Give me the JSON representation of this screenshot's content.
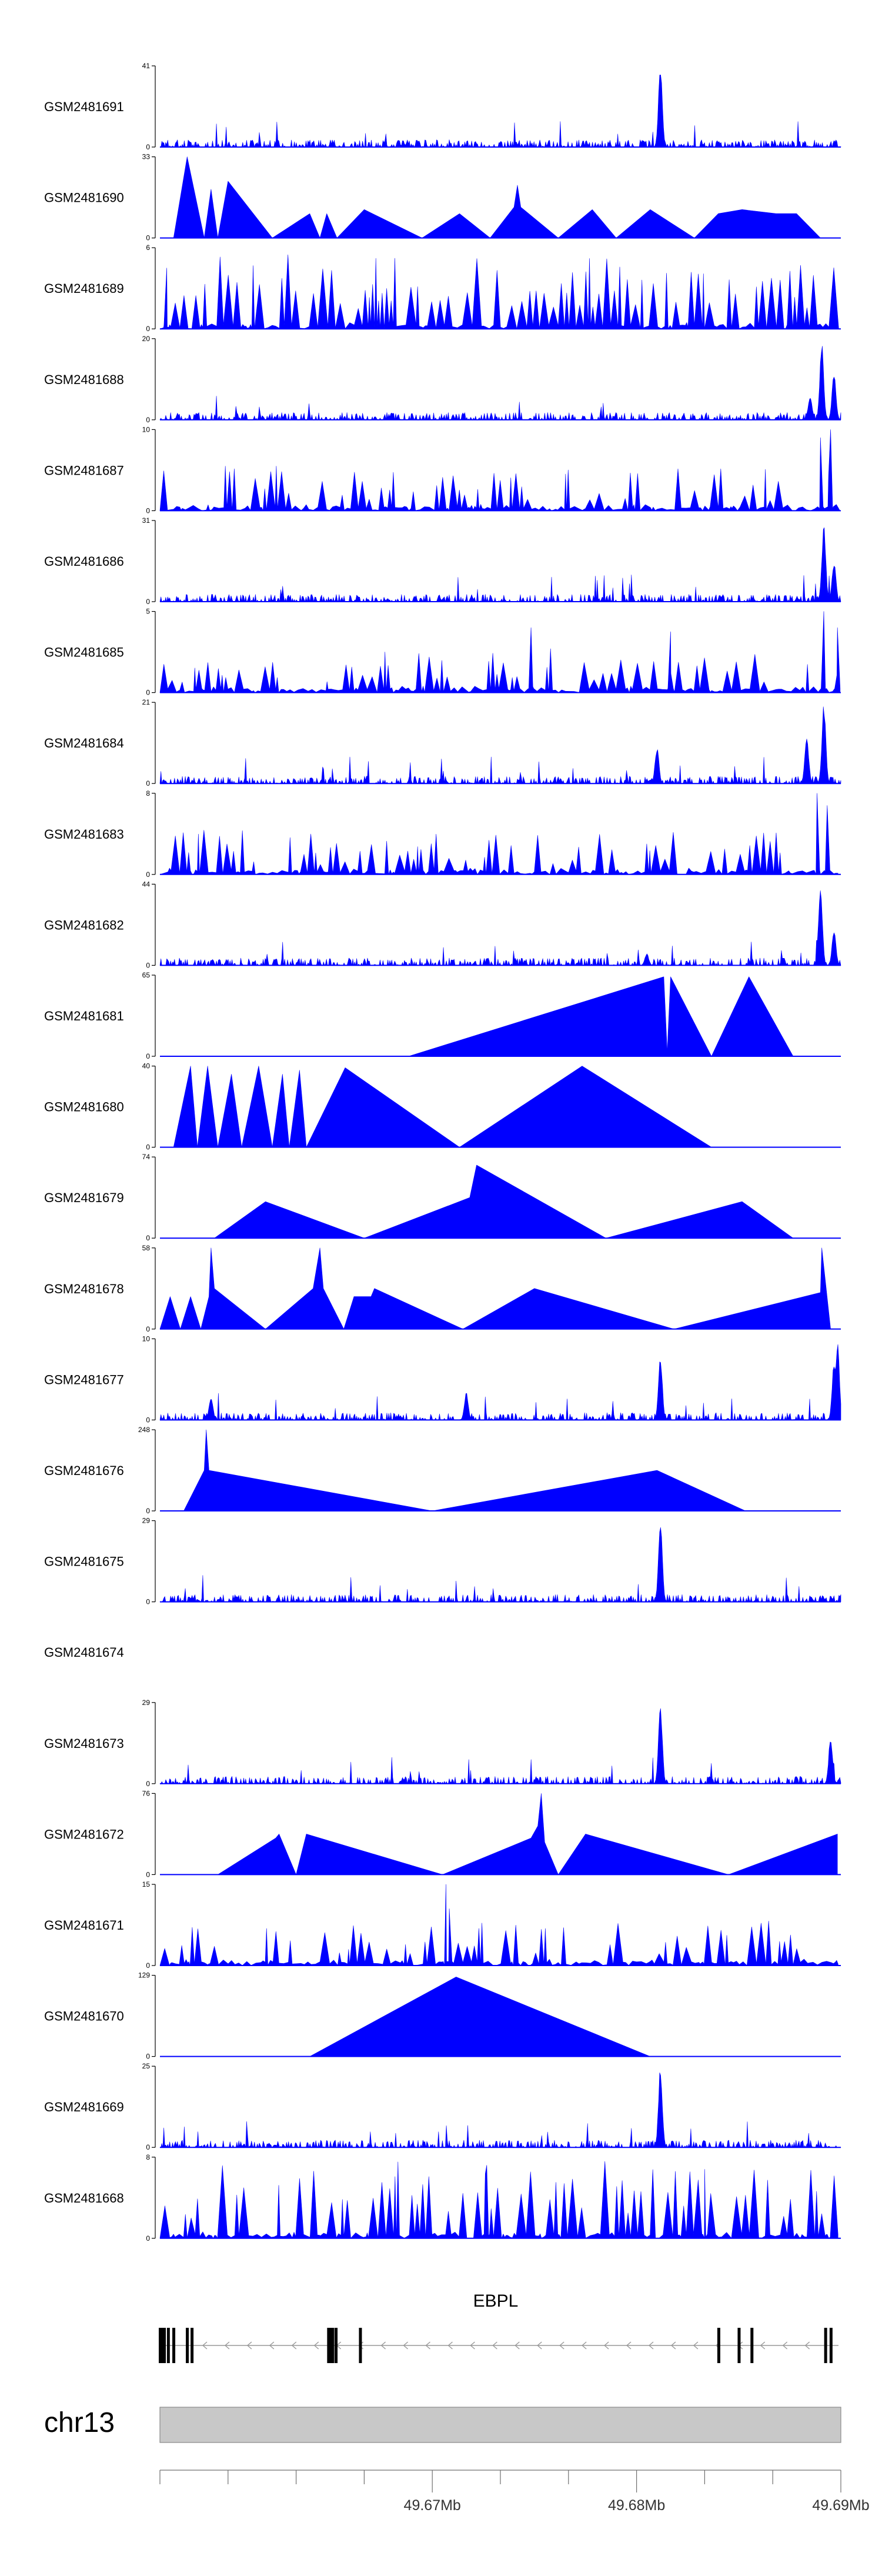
{
  "chart_data": {
    "type": "area",
    "colors": {
      "signal": "#0000ff",
      "axis": "#000000",
      "gene": "#000000",
      "ideogram": "#c8c8c8",
      "strand": "#999999"
    },
    "tracks": [
      {
        "sample": "GSM2481691",
        "ymax": 41,
        "pattern": "sparse",
        "peaks": [
          [
            0.735,
            1.0
          ]
        ]
      },
      {
        "sample": "GSM2481690",
        "ymax": 33,
        "pattern": "tri",
        "anchors": [
          [
            0.02,
            0
          ],
          [
            0.04,
            1.0
          ],
          [
            0.065,
            0
          ],
          [
            0.075,
            0.6
          ],
          [
            0.085,
            0
          ],
          [
            0.1,
            0.7
          ],
          [
            0.165,
            0
          ],
          [
            0.22,
            0.3
          ],
          [
            0.235,
            0
          ],
          [
            0.245,
            0.3
          ],
          [
            0.26,
            0
          ],
          [
            0.3,
            0.35
          ],
          [
            0.385,
            0
          ],
          [
            0.44,
            0.3
          ],
          [
            0.485,
            0
          ],
          [
            0.52,
            0.38
          ],
          [
            0.525,
            0.65
          ],
          [
            0.53,
            0.38
          ],
          [
            0.585,
            0
          ],
          [
            0.635,
            0.35
          ],
          [
            0.67,
            0
          ],
          [
            0.72,
            0.35
          ],
          [
            0.785,
            0
          ],
          [
            0.82,
            0.3
          ],
          [
            0.855,
            0.35
          ],
          [
            0.905,
            0.3
          ],
          [
            0.935,
            0.3
          ],
          [
            0.97,
            0
          ]
        ]
      },
      {
        "sample": "GSM2481689",
        "ymax": 6,
        "pattern": "dense",
        "peaks": [
          [
            0.01,
            0.75
          ]
        ]
      },
      {
        "sample": "GSM2481688",
        "ymax": 20,
        "pattern": "sparse",
        "peaks": [
          [
            0.972,
            0.95
          ],
          [
            0.99,
            0.6
          ],
          [
            0.955,
            0.3
          ]
        ]
      },
      {
        "sample": "GSM2481687",
        "ymax": 10,
        "pattern": "dense2",
        "peaks": [
          [
            0.985,
            1.0
          ],
          [
            0.97,
            0.9
          ]
        ]
      },
      {
        "sample": "GSM2481686",
        "ymax": 31,
        "pattern": "sparse",
        "peaks": [
          [
            0.975,
            0.95
          ],
          [
            0.99,
            0.5
          ]
        ]
      },
      {
        "sample": "GSM2481685",
        "ymax": 5,
        "pattern": "dense2",
        "peaks": [
          [
            0.975,
            1.0
          ],
          [
            0.545,
            0.8
          ],
          [
            0.75,
            0.75
          ],
          [
            0.995,
            0.8
          ]
        ]
      },
      {
        "sample": "GSM2481684",
        "ymax": 21,
        "pattern": "sparse",
        "peaks": [
          [
            0.975,
            1.0
          ],
          [
            0.73,
            0.45
          ],
          [
            0.95,
            0.6
          ]
        ]
      },
      {
        "sample": "GSM2481683",
        "ymax": 8,
        "pattern": "dense2",
        "peaks": [
          [
            0.965,
            1.0
          ],
          [
            0.98,
            0.85
          ]
        ]
      },
      {
        "sample": "GSM2481682",
        "ymax": 44,
        "pattern": "sparse",
        "peaks": [
          [
            0.97,
            1.0
          ],
          [
            0.99,
            0.45
          ],
          [
            0.715,
            0.15
          ]
        ]
      },
      {
        "sample": "GSM2481681",
        "ymax": 65,
        "pattern": "tri",
        "anchors": [
          [
            0.365,
            0
          ],
          [
            0.74,
            0.98
          ],
          [
            0.745,
            0.05
          ],
          [
            0.75,
            0.98
          ],
          [
            0.81,
            0
          ],
          [
            0.865,
            0.98
          ],
          [
            0.93,
            0
          ]
        ]
      },
      {
        "sample": "GSM2481680",
        "ymax": 40,
        "pattern": "tri",
        "anchors": [
          [
            0.02,
            0
          ],
          [
            0.045,
            1.0
          ],
          [
            0.055,
            0
          ],
          [
            0.07,
            1.0
          ],
          [
            0.085,
            0
          ],
          [
            0.105,
            0.9
          ],
          [
            0.12,
            0
          ],
          [
            0.145,
            1.0
          ],
          [
            0.165,
            0
          ],
          [
            0.18,
            0.9
          ],
          [
            0.19,
            0
          ],
          [
            0.205,
            0.95
          ],
          [
            0.215,
            0
          ],
          [
            0.272,
            0.98
          ],
          [
            0.44,
            0
          ],
          [
            0.62,
            1.0
          ],
          [
            0.81,
            0
          ]
        ]
      },
      {
        "sample": "GSM2481679",
        "ymax": 74,
        "pattern": "tri",
        "anchors": [
          [
            0.08,
            0
          ],
          [
            0.155,
            0.45
          ],
          [
            0.3,
            0
          ],
          [
            0.455,
            0.5
          ],
          [
            0.465,
            0.9
          ],
          [
            0.655,
            0
          ],
          [
            0.855,
            0.45
          ],
          [
            0.93,
            0
          ]
        ]
      },
      {
        "sample": "GSM2481678",
        "ymax": 58,
        "pattern": "tri",
        "anchors": [
          [
            0,
            0
          ],
          [
            0.015,
            0.4
          ],
          [
            0.03,
            0
          ],
          [
            0.045,
            0.4
          ],
          [
            0.06,
            0
          ],
          [
            0.072,
            0.4
          ],
          [
            0.075,
            1.0
          ],
          [
            0.08,
            0.5
          ],
          [
            0.155,
            0
          ],
          [
            0.225,
            0.5
          ],
          [
            0.235,
            1.0
          ],
          [
            0.24,
            0.5
          ],
          [
            0.27,
            0
          ],
          [
            0.285,
            0.4
          ],
          [
            0.31,
            0.4
          ],
          [
            0.315,
            0.5
          ],
          [
            0.445,
            0
          ],
          [
            0.55,
            0.5
          ],
          [
            0.755,
            0
          ],
          [
            0.97,
            0.45
          ],
          [
            0.972,
            1.0
          ],
          [
            0.985,
            0
          ]
        ]
      },
      {
        "sample": "GSM2481677",
        "ymax": 10,
        "pattern": "sparse",
        "peaks": [
          [
            0.735,
            0.8
          ],
          [
            0.995,
            1.0
          ],
          [
            0.99,
            0.7
          ],
          [
            0.075,
            0.3
          ],
          [
            0.45,
            0.35
          ]
        ]
      },
      {
        "sample": "GSM2481676",
        "ymax": 248,
        "pattern": "tri",
        "anchors": [
          [
            0.035,
            0
          ],
          [
            0.065,
            0.5
          ],
          [
            0.068,
            1.0
          ],
          [
            0.072,
            0.5
          ],
          [
            0.4,
            0
          ],
          [
            0.73,
            0.5
          ],
          [
            0.86,
            0
          ]
        ]
      },
      {
        "sample": "GSM2481675",
        "ymax": 29,
        "pattern": "sparse",
        "peaks": [
          [
            0.735,
            1.0
          ]
        ]
      },
      {
        "sample": "GSM2481674",
        "ymax": null,
        "pattern": "empty"
      },
      {
        "sample": "GSM2481673",
        "ymax": 29,
        "pattern": "sparse",
        "peaks": [
          [
            0.735,
            1.0
          ],
          [
            0.985,
            0.6
          ]
        ]
      },
      {
        "sample": "GSM2481672",
        "ymax": 76,
        "pattern": "tri",
        "anchors": [
          [
            0.085,
            0
          ],
          [
            0.17,
            0.45
          ],
          [
            0.175,
            0.5
          ],
          [
            0.2,
            0
          ],
          [
            0.215,
            0.5
          ],
          [
            0.415,
            0
          ],
          [
            0.545,
            0.45
          ],
          [
            0.555,
            0.6
          ],
          [
            0.56,
            1.0
          ],
          [
            0.565,
            0.4
          ],
          [
            0.585,
            0
          ],
          [
            0.625,
            0.5
          ],
          [
            0.835,
            0
          ],
          [
            0.995,
            0.5
          ]
        ]
      },
      {
        "sample": "GSM2481671",
        "ymax": 15,
        "pattern": "dense2",
        "peaks": [
          [
            0.42,
            1.0
          ],
          [
            0.425,
            0.7
          ]
        ]
      },
      {
        "sample": "GSM2481670",
        "ymax": 129,
        "pattern": "tri",
        "anchors": [
          [
            0.22,
            0
          ],
          [
            0.435,
            0.98
          ],
          [
            0.72,
            0
          ]
        ]
      },
      {
        "sample": "GSM2481669",
        "ymax": 25,
        "pattern": "sparse",
        "peaks": [
          [
            0.735,
            1.0
          ]
        ]
      },
      {
        "sample": "GSM2481668",
        "ymax": 8,
        "pattern": "dense",
        "peaks": [
          [
            0.48,
            0.9
          ],
          [
            0.8,
            0.85
          ]
        ]
      }
    ],
    "gene": {
      "name": "EBPL",
      "strand": "-",
      "exons": [
        0.0,
        0.009,
        0.017,
        0.037,
        0.044,
        0.249,
        0.257,
        0.293,
        0.823,
        0.853,
        0.872,
        0.981,
        0.989
      ],
      "exon_weights": [
        2,
        1,
        1,
        1,
        1,
        2,
        1,
        1,
        1,
        1,
        1,
        1,
        1
      ]
    },
    "ideogram": {
      "chromosome": "chr13",
      "ticks": [
        {
          "pos": 0.0
        },
        {
          "pos": 0.107
        },
        {
          "pos": 0.214
        },
        {
          "pos": 0.321
        },
        {
          "pos": 0.428,
          "label": "49.67Mb"
        },
        {
          "pos": 0.535
        },
        {
          "pos": 0.642
        },
        {
          "pos": 0.749,
          "label": "49.68Mb"
        },
        {
          "pos": 0.856
        },
        {
          "pos": 0.963
        },
        {
          "pos": 1.07,
          "label": "49.69Mb"
        }
      ]
    }
  }
}
